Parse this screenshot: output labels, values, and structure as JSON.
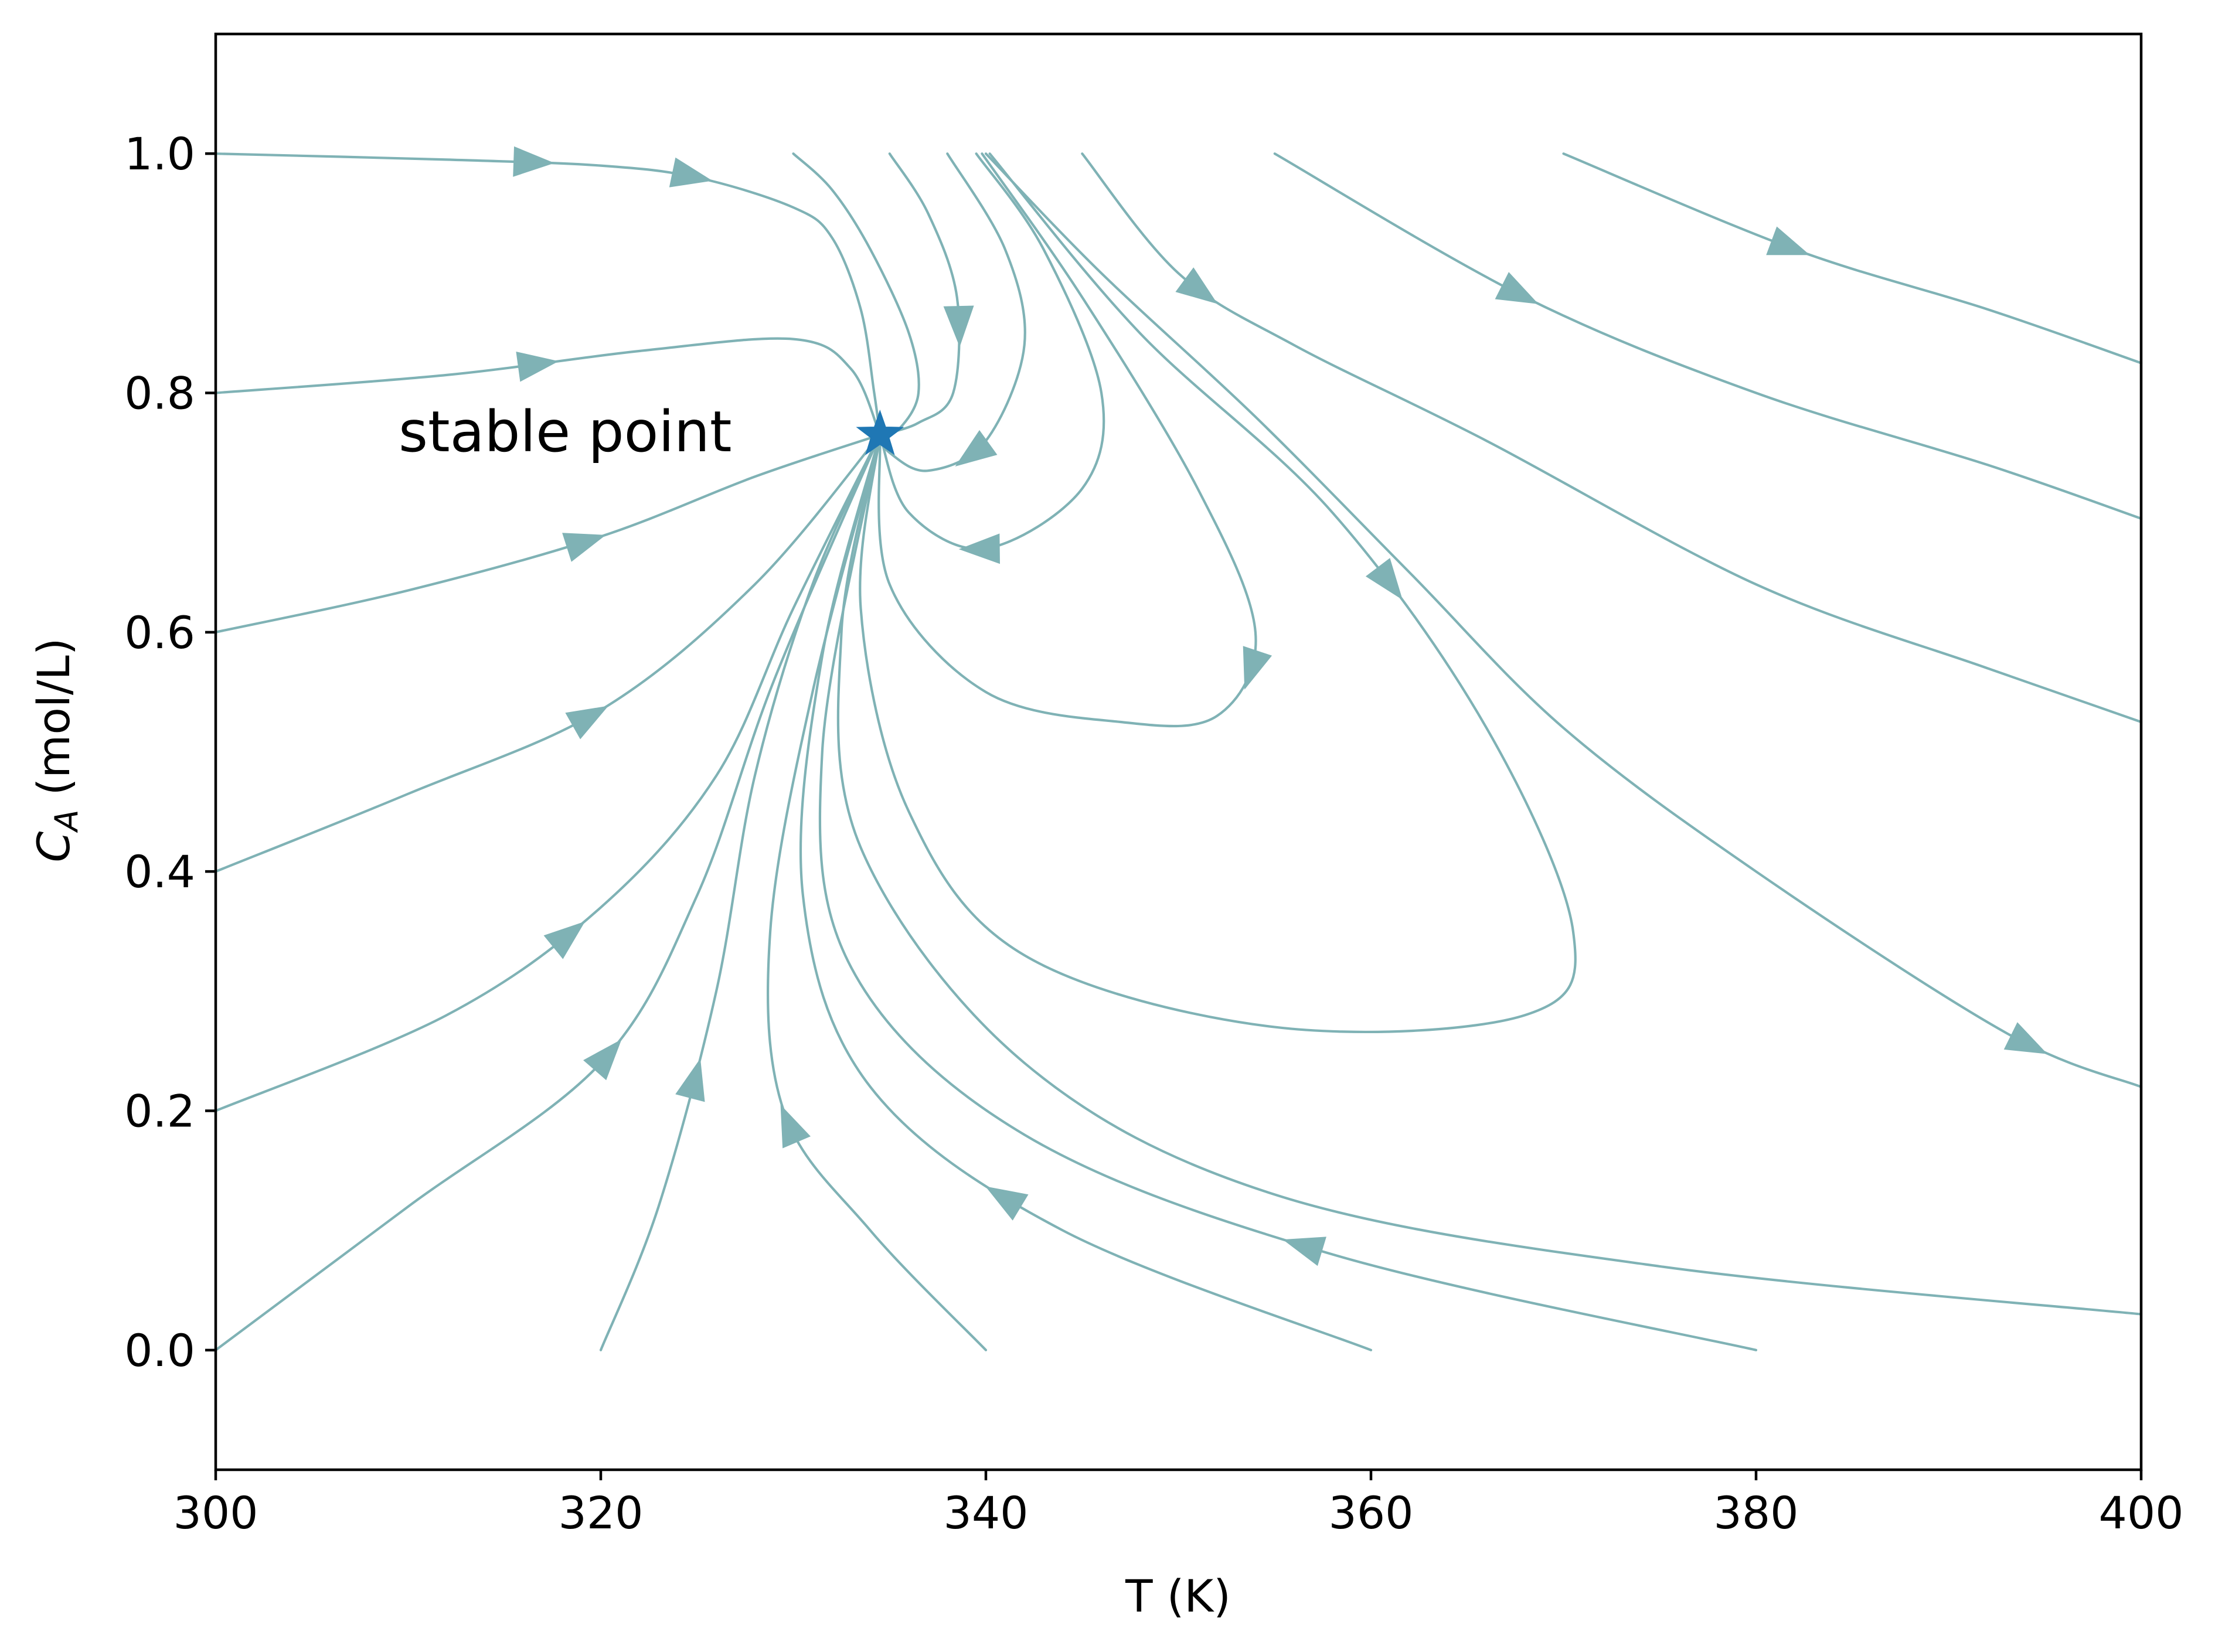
{
  "chart_data": {
    "type": "line",
    "subtype": "phase-portrait",
    "title": "",
    "xlabel": "T (K)",
    "ylabel": {
      "main": "C",
      "sub": "A",
      "unit": " (mol/L)"
    },
    "xlim": [
      300,
      400
    ],
    "ylim": [
      -0.1,
      1.1
    ],
    "xticks": [
      "300",
      "320",
      "340",
      "360",
      "380",
      "400"
    ],
    "yticks": [
      "0.0",
      "0.2",
      "0.4",
      "0.6",
      "0.8",
      "1.0"
    ],
    "grid": false,
    "legend": "none",
    "line_color": "#7fb2b5",
    "marker_color": "#1f77b4",
    "stable_point": {
      "T": 334.5,
      "CA": 0.765,
      "label": "stable point",
      "marker": "star"
    },
    "trajectories": [
      {
        "points": [
          [
            300,
            1.0
          ],
          [
            312,
            0.995
          ],
          [
            320,
            0.99
          ],
          [
            325,
            0.98
          ],
          [
            330,
            0.955
          ],
          [
            332,
            0.93
          ],
          [
            333.5,
            0.87
          ],
          [
            334.2,
            0.8
          ],
          [
            334.5,
            0.765
          ]
        ],
        "arrows": [
          0.38,
          0.57
        ]
      },
      {
        "points": [
          [
            330,
            1.0
          ],
          [
            332,
            0.97
          ],
          [
            334,
            0.92
          ],
          [
            336,
            0.85
          ],
          [
            336.5,
            0.8
          ],
          [
            335.5,
            0.77
          ],
          [
            334.5,
            0.765
          ]
        ],
        "arrows": []
      },
      {
        "points": [
          [
            335,
            1.0
          ],
          [
            337,
            0.95
          ],
          [
            338.5,
            0.88
          ],
          [
            338.3,
            0.8
          ],
          [
            336.5,
            0.775
          ],
          [
            334.5,
            0.765
          ]
        ],
        "arrows": [
          0.55
        ]
      },
      {
        "points": [
          [
            338,
            1.0
          ],
          [
            341,
            0.92
          ],
          [
            342,
            0.84
          ],
          [
            340,
            0.76
          ],
          [
            337,
            0.735
          ],
          [
            335,
            0.75
          ],
          [
            334.5,
            0.765
          ]
        ],
        "arrows": [
          0.75
        ]
      },
      {
        "points": [
          [
            339.5,
            1.0
          ],
          [
            343,
            0.92
          ],
          [
            346,
            0.8
          ],
          [
            345,
            0.72
          ],
          [
            340,
            0.67
          ],
          [
            336,
            0.7
          ],
          [
            334.5,
            0.765
          ]
        ],
        "arrows": [
          0.75
        ]
      },
      {
        "points": [
          [
            339.8,
            1.0
          ],
          [
            345,
            0.88
          ],
          [
            351,
            0.72
          ],
          [
            354,
            0.6
          ],
          [
            352,
            0.53
          ],
          [
            347,
            0.525
          ],
          [
            340,
            0.55
          ],
          [
            335,
            0.64
          ],
          [
            334.5,
            0.765
          ]
        ],
        "arrows": [
          0.5
        ]
      },
      {
        "points": [
          [
            340.2,
            1.0
          ],
          [
            348,
            0.85
          ],
          [
            358,
            0.7
          ],
          [
            366,
            0.52
          ],
          [
            370.5,
            0.35
          ],
          [
            368,
            0.28
          ],
          [
            355,
            0.27
          ],
          [
            342,
            0.33
          ],
          [
            336,
            0.45
          ],
          [
            333.5,
            0.62
          ],
          [
            334.5,
            0.765
          ]
        ],
        "arrows": [
          0.27
        ]
      },
      {
        "points": [
          [
            345,
            1.0
          ],
          [
            350,
            0.9
          ],
          [
            356,
            0.84
          ],
          [
            366,
            0.76
          ],
          [
            380,
            0.64
          ],
          [
            392,
            0.57
          ],
          [
            400,
            0.525
          ]
        ],
        "arrows": [
          0.15
        ]
      },
      {
        "points": [
          [
            355,
            1.0
          ],
          [
            368,
            0.88
          ],
          [
            380,
            0.8
          ],
          [
            392,
            0.74
          ],
          [
            400,
            0.695
          ]
        ],
        "arrows": [
          0.3
        ]
      },
      {
        "points": [
          [
            370,
            1.0
          ],
          [
            382,
            0.92
          ],
          [
            392,
            0.87
          ],
          [
            400,
            0.825
          ]
        ],
        "arrows": [
          0.4
        ]
      },
      {
        "points": [
          [
            340,
            1.0
          ],
          [
            346,
            0.9
          ],
          [
            354,
            0.78
          ],
          [
            362,
            0.65
          ],
          [
            370,
            0.52
          ],
          [
            380,
            0.4
          ],
          [
            393,
            0.265
          ],
          [
            400,
            0.22
          ]
        ],
        "arrows": [
          0.92
        ]
      },
      {
        "points": [
          [
            300,
            0.8
          ],
          [
            312,
            0.815
          ],
          [
            322,
            0.835
          ],
          [
            330,
            0.845
          ],
          [
            333,
            0.82
          ],
          [
            334.5,
            0.765
          ]
        ],
        "arrows": [
          0.45
        ]
      },
      {
        "points": [
          [
            300,
            0.6
          ],
          [
            310,
            0.635
          ],
          [
            320,
            0.68
          ],
          [
            328,
            0.73
          ],
          [
            334.5,
            0.765
          ]
        ],
        "arrows": [
          0.55
        ]
      },
      {
        "points": [
          [
            300,
            0.4
          ],
          [
            310,
            0.465
          ],
          [
            320,
            0.535
          ],
          [
            328,
            0.64
          ],
          [
            334.5,
            0.765
          ]
        ],
        "arrows": [
          0.5
        ]
      },
      {
        "points": [
          [
            300,
            0.2
          ],
          [
            312,
            0.28
          ],
          [
            320,
            0.37
          ],
          [
            326,
            0.48
          ],
          [
            330,
            0.62
          ],
          [
            334.5,
            0.765
          ]
        ],
        "arrows": [
          0.4
        ]
      },
      {
        "points": [
          [
            300,
            0.0
          ],
          [
            310,
            0.12
          ],
          [
            320,
            0.24
          ],
          [
            325,
            0.38
          ],
          [
            329,
            0.56
          ],
          [
            334.5,
            0.765
          ]
        ],
        "arrows": [
          0.42
        ]
      },
      {
        "points": [
          [
            320,
            0.0
          ],
          [
            323,
            0.12
          ],
          [
            326,
            0.3
          ],
          [
            328,
            0.48
          ],
          [
            331,
            0.64
          ],
          [
            334.5,
            0.765
          ]
        ],
        "arrows": [
          0.3
        ]
      },
      {
        "points": [
          [
            340,
            0.0
          ],
          [
            334,
            0.1
          ],
          [
            329.5,
            0.2
          ],
          [
            328.8,
            0.35
          ],
          [
            331,
            0.55
          ],
          [
            334.5,
            0.765
          ]
        ],
        "arrows": [
          0.3
        ]
      },
      {
        "points": [
          [
            360,
            0.0
          ],
          [
            344,
            0.1
          ],
          [
            334,
            0.22
          ],
          [
            330.5,
            0.38
          ],
          [
            331.5,
            0.58
          ],
          [
            334.5,
            0.765
          ]
        ],
        "arrows": [
          0.32
        ]
      },
      {
        "points": [
          [
            380,
            0.0
          ],
          [
            358,
            0.08
          ],
          [
            342,
            0.18
          ],
          [
            333,
            0.32
          ],
          [
            331.5,
            0.5
          ],
          [
            334.5,
            0.765
          ]
        ],
        "arrows": [
          0.3
        ]
      },
      {
        "points": [
          [
            400,
            0.03
          ],
          [
            375,
            0.07
          ],
          [
            355,
            0.13
          ],
          [
            342,
            0.24
          ],
          [
            333.5,
            0.42
          ],
          [
            332.5,
            0.6
          ],
          [
            334.5,
            0.765
          ]
        ],
        "arrows": []
      }
    ]
  }
}
